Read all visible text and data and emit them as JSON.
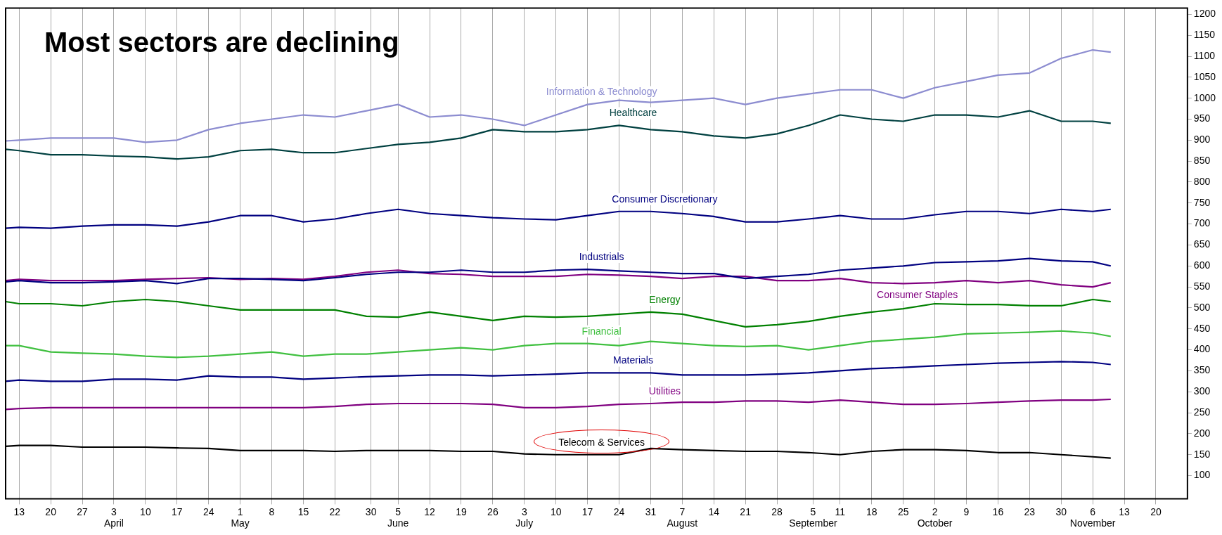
{
  "chart_data": {
    "type": "line",
    "title": "Most sectors are declining",
    "x": [
      "--03-10",
      "--03-13",
      "--03-20",
      "--03-27",
      "--04-03",
      "--04-10",
      "--04-17",
      "--04-24",
      "--05-01",
      "--05-08",
      "--05-15",
      "--05-22",
      "--05-29",
      "--06-05",
      "--06-12",
      "--06-19",
      "--06-26",
      "--07-03",
      "--07-10",
      "--07-17",
      "--07-24",
      "--07-31",
      "--08-07",
      "--08-14",
      "--08-21",
      "--08-28",
      "--09-04",
      "--09-11",
      "--09-18",
      "--09-25",
      "--10-02",
      "--10-09",
      "--10-16",
      "--10-23",
      "--10-30",
      "--11-06",
      "--11-10"
    ],
    "series": [
      {
        "name": "Information & Technology",
        "color": "#8c8cd0",
        "values": [
          898,
          900,
          905,
          905,
          905,
          895,
          900,
          925,
          940,
          950,
          960,
          955,
          970,
          985,
          955,
          960,
          950,
          935,
          960,
          985,
          995,
          990,
          995,
          1000,
          985,
          1000,
          1010,
          1020,
          1020,
          1000,
          1025,
          1040,
          1055,
          1060,
          1095,
          1115,
          1110
        ]
      },
      {
        "name": "Healthcare",
        "color": "#004040",
        "values": [
          878,
          875,
          865,
          865,
          862,
          860,
          855,
          860,
          875,
          878,
          870,
          870,
          880,
          890,
          895,
          905,
          925,
          920,
          920,
          925,
          935,
          925,
          920,
          910,
          905,
          915,
          935,
          960,
          950,
          945,
          960,
          960,
          955,
          970,
          945,
          945,
          940
        ]
      },
      {
        "name": "Consumer Discretionary",
        "color": "#000080",
        "values": [
          690,
          692,
          690,
          695,
          698,
          698,
          695,
          705,
          720,
          720,
          705,
          712,
          725,
          735,
          725,
          720,
          715,
          712,
          710,
          720,
          730,
          730,
          725,
          718,
          705,
          705,
          712,
          720,
          712,
          712,
          722,
          730,
          730,
          725,
          735,
          730,
          735
        ]
      },
      {
        "name": "Industrials",
        "color": "#000080",
        "values": [
          562,
          565,
          560,
          560,
          562,
          565,
          558,
          570,
          570,
          568,
          565,
          572,
          580,
          585,
          585,
          590,
          585,
          585,
          590,
          592,
          588,
          585,
          582,
          582,
          570,
          575,
          580,
          590,
          595,
          600,
          608,
          610,
          612,
          618,
          612,
          610,
          600
        ]
      },
      {
        "name": "Consumer Staples",
        "color": "#800080",
        "values": [
          565,
          568,
          565,
          565,
          565,
          568,
          570,
          572,
          568,
          570,
          568,
          575,
          585,
          590,
          582,
          580,
          575,
          575,
          575,
          580,
          578,
          575,
          570,
          575,
          575,
          565,
          565,
          570,
          560,
          558,
          560,
          565,
          560,
          565,
          555,
          550,
          560
        ]
      },
      {
        "name": "Energy",
        "color": "#008000",
        "values": [
          515,
          510,
          510,
          505,
          515,
          520,
          515,
          505,
          495,
          495,
          495,
          495,
          480,
          478,
          490,
          480,
          470,
          480,
          478,
          480,
          485,
          490,
          485,
          470,
          455,
          460,
          468,
          480,
          490,
          498,
          510,
          508,
          508,
          505,
          505,
          520,
          515
        ]
      },
      {
        "name": "Financial",
        "color": "#40c040",
        "values": [
          410,
          410,
          395,
          392,
          390,
          385,
          382,
          385,
          390,
          395,
          385,
          390,
          390,
          395,
          400,
          405,
          400,
          410,
          415,
          415,
          410,
          420,
          415,
          410,
          408,
          410,
          400,
          410,
          420,
          425,
          430,
          438,
          440,
          442,
          445,
          440,
          432
        ]
      },
      {
        "name": "Materials",
        "color": "#000080",
        "values": [
          325,
          328,
          325,
          325,
          330,
          330,
          328,
          338,
          335,
          335,
          330,
          333,
          336,
          338,
          340,
          340,
          338,
          340,
          342,
          345,
          345,
          345,
          340,
          340,
          340,
          342,
          345,
          350,
          355,
          358,
          362,
          365,
          368,
          370,
          372,
          370,
          365
        ]
      },
      {
        "name": "Utilities",
        "color": "#800080",
        "values": [
          258,
          260,
          262,
          262,
          262,
          262,
          262,
          262,
          262,
          262,
          262,
          265,
          270,
          272,
          272,
          272,
          270,
          262,
          262,
          265,
          270,
          272,
          275,
          275,
          278,
          278,
          275,
          280,
          275,
          270,
          270,
          272,
          275,
          278,
          280,
          280,
          282
        ]
      },
      {
        "name": "Telecom & Services",
        "color": "#000000",
        "values": [
          170,
          172,
          172,
          168,
          168,
          168,
          166,
          165,
          160,
          160,
          160,
          158,
          160,
          160,
          160,
          158,
          158,
          152,
          150,
          150,
          150,
          165,
          162,
          160,
          158,
          158,
          155,
          150,
          158,
          162,
          162,
          160,
          155,
          155,
          150,
          145,
          142
        ]
      }
    ],
    "xlim": [
      "--03-10",
      "--11-27"
    ],
    "xticks": [
      {
        "value": "--03-13",
        "label": "13"
      },
      {
        "value": "--03-20",
        "label": "20"
      },
      {
        "value": "--03-27",
        "label": "27"
      },
      {
        "value": "--04-03",
        "label": "3\nApril"
      },
      {
        "value": "--04-10",
        "label": "10"
      },
      {
        "value": "--04-17",
        "label": "17"
      },
      {
        "value": "--04-24",
        "label": "24"
      },
      {
        "value": "--05-01",
        "label": "1\nMay"
      },
      {
        "value": "--05-08",
        "label": "8"
      },
      {
        "value": "--05-15",
        "label": "15"
      },
      {
        "value": "--05-22",
        "label": "22"
      },
      {
        "value": "--05-30",
        "label": "30"
      },
      {
        "value": "--06-05",
        "label": "5\nJune"
      },
      {
        "value": "--06-12",
        "label": "12"
      },
      {
        "value": "--06-19",
        "label": "19"
      },
      {
        "value": "--06-26",
        "label": "26"
      },
      {
        "value": "--07-03",
        "label": "3\nJuly"
      },
      {
        "value": "--07-10",
        "label": "10"
      },
      {
        "value": "--07-17",
        "label": "17"
      },
      {
        "value": "--07-24",
        "label": "24"
      },
      {
        "value": "--07-31",
        "label": "31"
      },
      {
        "value": "--08-07",
        "label": "7\nAugust"
      },
      {
        "value": "--08-14",
        "label": "14"
      },
      {
        "value": "--08-21",
        "label": "21"
      },
      {
        "value": "--08-28",
        "label": "28"
      },
      {
        "value": "--09-05",
        "label": "5\nSeptember"
      },
      {
        "value": "--09-11",
        "label": "11"
      },
      {
        "value": "--09-18",
        "label": "18"
      },
      {
        "value": "--09-25",
        "label": "25"
      },
      {
        "value": "--10-02",
        "label": "2\nOctober"
      },
      {
        "value": "--10-09",
        "label": "9"
      },
      {
        "value": "--10-16",
        "label": "16"
      },
      {
        "value": "--10-23",
        "label": "23"
      },
      {
        "value": "--10-30",
        "label": "30"
      },
      {
        "value": "--11-06",
        "label": "6\nNovember"
      },
      {
        "value": "--11-13",
        "label": "13"
      },
      {
        "value": "--11-20",
        "label": "20"
      }
    ],
    "ylim": [
      45,
      1215
    ],
    "yticks": [
      100,
      150,
      200,
      250,
      300,
      350,
      400,
      450,
      500,
      550,
      600,
      650,
      700,
      750,
      800,
      850,
      900,
      950,
      1000,
      1050,
      1100,
      1150,
      1200
    ],
    "grid": "x",
    "legend": false,
    "line_style": "solid",
    "marker": "none"
  }
}
